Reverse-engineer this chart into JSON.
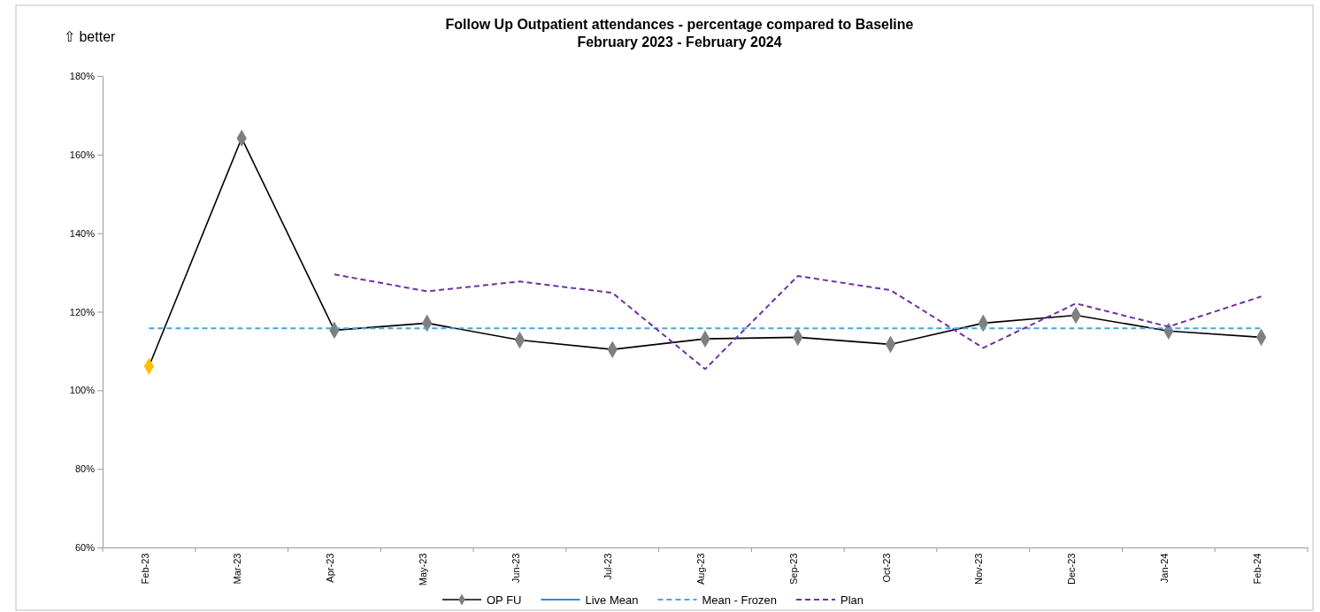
{
  "chart_data": {
    "type": "line",
    "title": "Follow Up Outpatient attendances - percentage compared to Baseline",
    "subtitle": "February 2023 - February 2024",
    "annotations": [
      "⇧ better"
    ],
    "categories": [
      "Feb-23",
      "Mar-23",
      "Apr-23",
      "May-23",
      "Jun-23",
      "Jul-23",
      "Aug-23",
      "Sep-23",
      "Oct-23",
      "Nov-23",
      "Dec-23",
      "Jan-24",
      "Feb-24"
    ],
    "ylim": [
      60,
      180
    ],
    "yticks": [
      {
        "value": 60,
        "label": "60%"
      },
      {
        "value": 80,
        "label": "80%"
      },
      {
        "value": 100,
        "label": "100%"
      },
      {
        "value": 120,
        "label": "120%"
      },
      {
        "value": 140,
        "label": "140%"
      },
      {
        "value": 160,
        "label": "160%"
      },
      {
        "value": 180,
        "label": "180%"
      }
    ],
    "grid": false,
    "legend": "bottom",
    "series": [
      {
        "name": "OP FU",
        "color": "#000000",
        "marker": "diamond",
        "colors": [
          "#ffc000",
          "#7f7f7f",
          "#7f7f7f",
          "#7f7f7f",
          "#7f7f7f",
          "#7f7f7f",
          "#7f7f7f",
          "#7f7f7f",
          "#7f7f7f",
          "#7f7f7f",
          "#7f7f7f",
          "#7f7f7f",
          "#7f7f7f"
        ],
        "values": [
          106.1,
          164.2,
          115.3,
          117.1,
          112.8,
          110.4,
          113.1,
          113.5,
          111.7,
          117.1,
          119.1,
          115.1,
          113.5
        ]
      },
      {
        "name": "Live Mean",
        "color": "#2e8ad8",
        "line_style": "solid",
        "values": [
          null,
          null,
          null,
          null,
          null,
          null,
          null,
          null,
          null,
          null,
          null,
          null,
          null
        ]
      },
      {
        "name": "Mean - Frozen",
        "color": "#4aa3df",
        "line_style": "dashed",
        "values": [
          115.8,
          115.8,
          115.8,
          115.8,
          115.8,
          115.8,
          115.8,
          115.8,
          115.8,
          115.8,
          115.8,
          115.8,
          115.8
        ]
      },
      {
        "name": "Plan",
        "color": "#7030a0",
        "line_style": "dashed",
        "values": [
          null,
          null,
          129.5,
          125.2,
          127.7,
          124.8,
          105.4,
          129.1,
          125.5,
          110.8,
          122.1,
          116.2,
          123.9
        ]
      }
    ]
  }
}
